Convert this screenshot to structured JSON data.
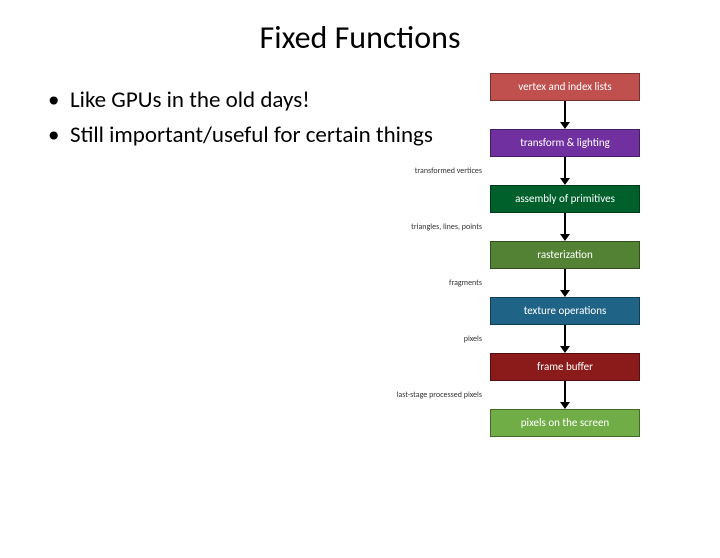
{
  "title": "Fixed Functions",
  "bullets": [
    "Like GPUs in the old days!",
    "Still important/useful for certain things"
  ],
  "pipeline": {
    "type": "flowchart",
    "stage_width": 150,
    "stage_height": 28,
    "arrow_gap": 28,
    "arrow_color": "#000000",
    "background_color": "#ffffff",
    "label_fontsize": 11,
    "edge_label_fontsize": 8,
    "edge_label_color": "#333333",
    "stages": [
      {
        "label": "vertex and index lists",
        "bg": "#c0504d",
        "fg": "#ffffff"
      },
      {
        "label": "transform & lighting",
        "bg": "#7030a0",
        "fg": "#ffffff"
      },
      {
        "label": "assembly of primitives",
        "bg": "#00602b",
        "fg": "#ffffff"
      },
      {
        "label": "rasterization",
        "bg": "#548235",
        "fg": "#ffffff"
      },
      {
        "label": "texture operations",
        "bg": "#1f6387",
        "fg": "#ffffff"
      },
      {
        "label": "frame buffer",
        "bg": "#8b1a1a",
        "fg": "#ffffff"
      },
      {
        "label": "pixels on the screen",
        "bg": "#70ad47",
        "fg": "#ffffff"
      }
    ],
    "edge_labels": [
      "",
      "transformed vertices",
      "triangles, lines, points",
      "fragments",
      "pixels",
      "last-stage processed pixels"
    ]
  }
}
